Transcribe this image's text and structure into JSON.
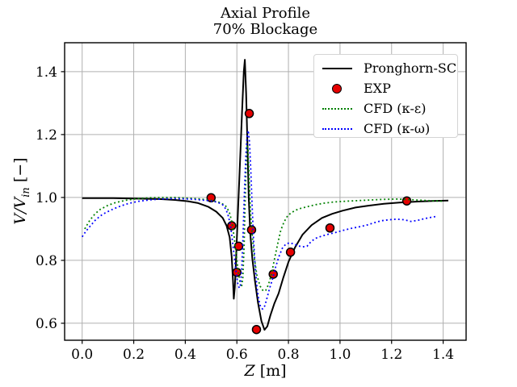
{
  "title": {
    "line1": "Axial Profile",
    "line2": "70% Blockage"
  },
  "labels": {
    "xlabel_main": "Z",
    "xlabel_unit": " [m]",
    "ylabel_main": "V/V",
    "ylabel_sub": "in",
    "ylabel_unit": " [−]"
  },
  "axes": {
    "xlim": [
      -0.068,
      1.489
    ],
    "ylim": [
      0.546,
      1.492
    ],
    "xtick_values": [
      0.0,
      0.2,
      0.4,
      0.6,
      0.8,
      1.0,
      1.2,
      1.4
    ],
    "xtick_labels": [
      "0.0",
      "0.2",
      "0.4",
      "0.6",
      "0.8",
      "1.0",
      "1.2",
      "1.4"
    ],
    "ytick_values": [
      0.6,
      0.8,
      1.0,
      1.2,
      1.4
    ],
    "ytick_labels": [
      "0.6",
      "0.8",
      "1.0",
      "1.2",
      "1.4"
    ],
    "grid": true,
    "grid_color": "#b0b0b0",
    "spine_color": "#000000"
  },
  "legend": {
    "position": "upper right"
  },
  "chart_data": {
    "type": "line",
    "title": "Axial Profile 70% Blockage",
    "xlabel": "Z [m]",
    "ylabel": "V/V_in [−]",
    "xlim": [
      -0.068,
      1.489
    ],
    "ylim": [
      0.546,
      1.492
    ],
    "grid": true,
    "legend_position": "upper right",
    "series": [
      {
        "name": "Pronghorn-SC",
        "kind": "line",
        "style": "solid",
        "color": "#000000",
        "width": 2,
        "points": [
          [
            0.0,
            0.998
          ],
          [
            0.06,
            0.998
          ],
          [
            0.12,
            0.998
          ],
          [
            0.18,
            0.997
          ],
          [
            0.24,
            0.996
          ],
          [
            0.3,
            0.995
          ],
          [
            0.36,
            0.992
          ],
          [
            0.41,
            0.988
          ],
          [
            0.45,
            0.982
          ],
          [
            0.49,
            0.97
          ],
          [
            0.52,
            0.955
          ],
          [
            0.545,
            0.935
          ],
          [
            0.56,
            0.91
          ],
          [
            0.572,
            0.873
          ],
          [
            0.58,
            0.812
          ],
          [
            0.585,
            0.737
          ],
          [
            0.588,
            0.678
          ],
          [
            0.592,
            0.715
          ],
          [
            0.598,
            0.83
          ],
          [
            0.605,
            0.97
          ],
          [
            0.613,
            1.13
          ],
          [
            0.62,
            1.27
          ],
          [
            0.627,
            1.4
          ],
          [
            0.631,
            1.438
          ],
          [
            0.636,
            1.33
          ],
          [
            0.641,
            1.17
          ],
          [
            0.646,
            1.0
          ],
          [
            0.652,
            0.885
          ],
          [
            0.66,
            0.805
          ],
          [
            0.67,
            0.735
          ],
          [
            0.682,
            0.665
          ],
          [
            0.695,
            0.607
          ],
          [
            0.707,
            0.579
          ],
          [
            0.718,
            0.59
          ],
          [
            0.73,
            0.625
          ],
          [
            0.745,
            0.662
          ],
          [
            0.762,
            0.695
          ],
          [
            0.78,
            0.745
          ],
          [
            0.8,
            0.795
          ],
          [
            0.825,
            0.84
          ],
          [
            0.855,
            0.882
          ],
          [
            0.89,
            0.912
          ],
          [
            0.93,
            0.935
          ],
          [
            0.97,
            0.948
          ],
          [
            1.01,
            0.958
          ],
          [
            1.06,
            0.968
          ],
          [
            1.11,
            0.974
          ],
          [
            1.17,
            0.98
          ],
          [
            1.23,
            0.984
          ],
          [
            1.3,
            0.987
          ],
          [
            1.36,
            0.989
          ],
          [
            1.42,
            0.99
          ]
        ]
      },
      {
        "name": "EXP",
        "kind": "scatter",
        "marker": "circle",
        "color": "#e60000",
        "edge_color": "#000000",
        "marker_radius": 5,
        "points": [
          [
            0.5,
            0.999
          ],
          [
            0.58,
            0.91
          ],
          [
            0.607,
            0.845
          ],
          [
            0.6,
            0.762
          ],
          [
            0.648,
            1.267
          ],
          [
            0.657,
            0.897
          ],
          [
            0.676,
            0.58
          ],
          [
            0.741,
            0.756
          ],
          [
            0.808,
            0.826
          ],
          [
            0.961,
            0.903
          ],
          [
            1.259,
            0.989
          ]
        ]
      },
      {
        "name": "CFD (κ-ε)",
        "kind": "line",
        "style": "dotted",
        "color": "#008000",
        "width": 1.8,
        "points": [
          [
            0.01,
            0.9
          ],
          [
            0.03,
            0.928
          ],
          [
            0.05,
            0.948
          ],
          [
            0.07,
            0.962
          ],
          [
            0.1,
            0.975
          ],
          [
            0.13,
            0.984
          ],
          [
            0.17,
            0.991
          ],
          [
            0.21,
            0.996
          ],
          [
            0.26,
            0.999
          ],
          [
            0.31,
            1.0
          ],
          [
            0.36,
            1.0
          ],
          [
            0.41,
            0.998
          ],
          [
            0.46,
            0.995
          ],
          [
            0.5,
            0.991
          ],
          [
            0.53,
            0.985
          ],
          [
            0.555,
            0.975
          ],
          [
            0.57,
            0.955
          ],
          [
            0.58,
            0.925
          ],
          [
            0.59,
            0.873
          ],
          [
            0.598,
            0.815
          ],
          [
            0.606,
            0.762
          ],
          [
            0.613,
            0.725
          ],
          [
            0.618,
            0.715
          ],
          [
            0.623,
            0.745
          ],
          [
            0.628,
            0.845
          ],
          [
            0.632,
            0.985
          ],
          [
            0.636,
            1.1
          ],
          [
            0.639,
            1.165
          ],
          [
            0.643,
            1.155
          ],
          [
            0.648,
            1.06
          ],
          [
            0.653,
            0.955
          ],
          [
            0.66,
            0.875
          ],
          [
            0.668,
            0.805
          ],
          [
            0.678,
            0.752
          ],
          [
            0.69,
            0.718
          ],
          [
            0.702,
            0.703
          ],
          [
            0.712,
            0.705
          ],
          [
            0.722,
            0.722
          ],
          [
            0.733,
            0.752
          ],
          [
            0.745,
            0.8
          ],
          [
            0.758,
            0.852
          ],
          [
            0.77,
            0.895
          ],
          [
            0.783,
            0.922
          ],
          [
            0.797,
            0.942
          ],
          [
            0.812,
            0.952
          ],
          [
            0.83,
            0.96
          ],
          [
            0.85,
            0.966
          ],
          [
            0.875,
            0.971
          ],
          [
            0.905,
            0.977
          ],
          [
            0.94,
            0.982
          ],
          [
            0.98,
            0.986
          ],
          [
            1.02,
            0.988
          ],
          [
            1.07,
            0.99
          ],
          [
            1.12,
            0.992
          ],
          [
            1.17,
            0.994
          ],
          [
            1.22,
            0.995
          ],
          [
            1.27,
            0.993
          ],
          [
            1.32,
            0.991
          ],
          [
            1.37,
            0.989
          ],
          [
            1.4,
            0.988
          ]
        ]
      },
      {
        "name": "CFD (κ-ω)",
        "kind": "line",
        "style": "dotted",
        "color": "#0000ff",
        "width": 1.8,
        "points": [
          [
            0.0,
            0.875
          ],
          [
            0.015,
            0.893
          ],
          [
            0.03,
            0.908
          ],
          [
            0.05,
            0.927
          ],
          [
            0.07,
            0.941
          ],
          [
            0.09,
            0.951
          ],
          [
            0.12,
            0.963
          ],
          [
            0.15,
            0.973
          ],
          [
            0.18,
            0.981
          ],
          [
            0.22,
            0.988
          ],
          [
            0.26,
            0.992
          ],
          [
            0.3,
            0.995
          ],
          [
            0.34,
            0.996
          ],
          [
            0.38,
            0.996
          ],
          [
            0.42,
            0.995
          ],
          [
            0.46,
            0.992
          ],
          [
            0.5,
            0.989
          ],
          [
            0.525,
            0.985
          ],
          [
            0.545,
            0.977
          ],
          [
            0.558,
            0.962
          ],
          [
            0.568,
            0.938
          ],
          [
            0.576,
            0.905
          ],
          [
            0.583,
            0.862
          ],
          [
            0.59,
            0.812
          ],
          [
            0.597,
            0.762
          ],
          [
            0.603,
            0.728
          ],
          [
            0.609,
            0.712
          ],
          [
            0.614,
            0.722
          ],
          [
            0.619,
            0.775
          ],
          [
            0.624,
            0.88
          ],
          [
            0.629,
            1.01
          ],
          [
            0.634,
            1.12
          ],
          [
            0.639,
            1.19
          ],
          [
            0.644,
            1.213
          ],
          [
            0.649,
            1.175
          ],
          [
            0.654,
            1.085
          ],
          [
            0.659,
            0.975
          ],
          [
            0.664,
            0.875
          ],
          [
            0.67,
            0.79
          ],
          [
            0.677,
            0.722
          ],
          [
            0.684,
            0.678
          ],
          [
            0.692,
            0.652
          ],
          [
            0.7,
            0.645
          ],
          [
            0.708,
            0.655
          ],
          [
            0.716,
            0.678
          ],
          [
            0.726,
            0.708
          ],
          [
            0.738,
            0.74
          ],
          [
            0.75,
            0.778
          ],
          [
            0.763,
            0.812
          ],
          [
            0.776,
            0.838
          ],
          [
            0.79,
            0.852
          ],
          [
            0.805,
            0.856
          ],
          [
            0.82,
            0.852
          ],
          [
            0.838,
            0.846
          ],
          [
            0.856,
            0.843
          ],
          [
            0.872,
            0.845
          ],
          [
            0.888,
            0.86
          ],
          [
            0.905,
            0.87
          ],
          [
            0.925,
            0.876
          ],
          [
            0.95,
            0.882
          ],
          [
            0.98,
            0.888
          ],
          [
            1.01,
            0.895
          ],
          [
            1.04,
            0.901
          ],
          [
            1.07,
            0.906
          ],
          [
            1.1,
            0.911
          ],
          [
            1.13,
            0.919
          ],
          [
            1.16,
            0.926
          ],
          [
            1.19,
            0.929
          ],
          [
            1.22,
            0.931
          ],
          [
            1.25,
            0.929
          ],
          [
            1.275,
            0.924
          ],
          [
            1.3,
            0.927
          ],
          [
            1.33,
            0.933
          ],
          [
            1.355,
            0.937
          ],
          [
            1.375,
            0.94
          ]
        ]
      }
    ]
  }
}
